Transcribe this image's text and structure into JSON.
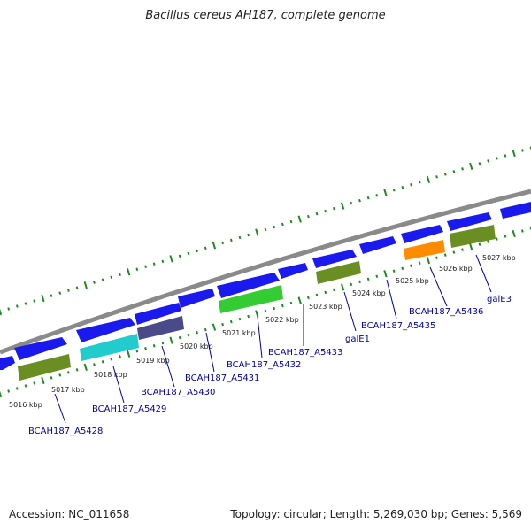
{
  "title": "Bacillus cereus AH187, complete genome",
  "footer": {
    "accession": "Accession: NC_011658",
    "summary": "Topology: circular; Length: 5,269,030 bp; Genes: 5,569"
  },
  "colors": {
    "backbone": "#8a8a8a",
    "ticks": "#1f8a1f",
    "label": "#0000aa",
    "blue_gene": "#1a1aee",
    "olive_gene": "#6b8e23",
    "cyan_gene": "#22cccc",
    "slate_gene": "#4a4a8a",
    "green_gene": "#33cc33",
    "orange_gene": "#ff8c00"
  },
  "scale_labels": [
    "5016 kbp",
    "5017 kbp",
    "5018 kbp",
    "5019 kbp",
    "5020 kbp",
    "5021 kbp",
    "5022 kbp",
    "5023 kbp",
    "5024 kbp",
    "5025 kbp",
    "5026 kbp",
    "5027 kbp"
  ],
  "gene_labels": [
    "BCAH187_A5428",
    "BCAH187_A5429",
    "BCAH187_A5430",
    "BCAH187_A5431",
    "BCAH187_A5432",
    "BCAH187_A5433",
    "galE1",
    "BCAH187_A5435",
    "BCAH187_A5436",
    "galE3"
  ]
}
